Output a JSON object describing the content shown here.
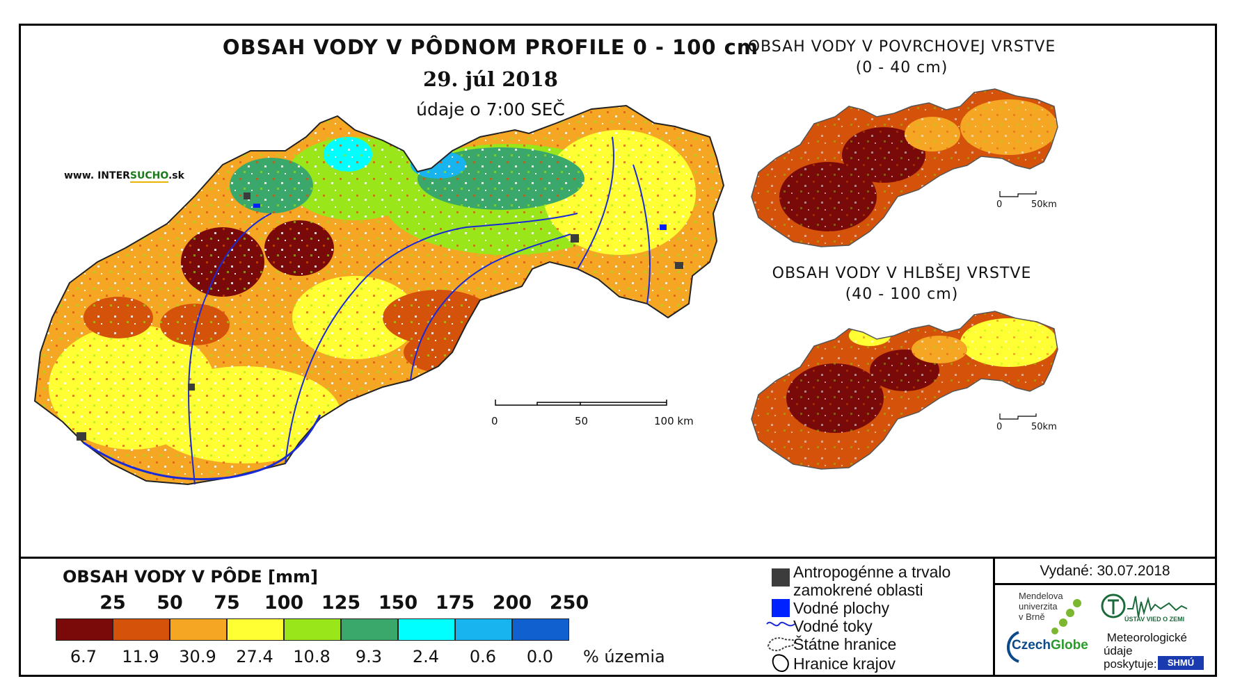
{
  "title": {
    "main": "OBSAH VODY V PÔDNOM PROFILE 0 - 100 cm",
    "date": "29. júl 2018",
    "time": "údaje o 7:00 SEČ"
  },
  "watermark": {
    "prefix": "www. INTER",
    "highlight": "SUCHO",
    "suffix": ".sk"
  },
  "insets": [
    {
      "title_line1": "OBSAH VODY V POVRCHOVEJ VRSTVE",
      "title_line2": "(0 - 40 cm)",
      "scale_0": "0",
      "scale_end": "50km"
    },
    {
      "title_line1": "OBSAH VODY V HLBŠEJ VRSTVE",
      "title_line2": "(40 - 100 cm)",
      "scale_0": "0",
      "scale_end": "50km"
    }
  ],
  "main_scale": {
    "label_0": "0",
    "label_mid": "50",
    "label_end": "100 km"
  },
  "legend": {
    "title": "OBSAH VODY V PÔDE [mm]",
    "unit": "% územia",
    "classes": [
      {
        "upper": "25",
        "color": "#7a0a0a",
        "pct": "6.7"
      },
      {
        "upper": "50",
        "color": "#d4520a",
        "pct": "11.9"
      },
      {
        "upper": "75",
        "color": "#f5a623",
        "pct": "30.9"
      },
      {
        "upper": "100",
        "color": "#ffff33",
        "pct": "27.4"
      },
      {
        "upper": "125",
        "color": "#99e61a",
        "pct": "10.8"
      },
      {
        "upper": "150",
        "color": "#3ba86b",
        "pct": "9.3"
      },
      {
        "upper": "175",
        "color": "#00ffff",
        "pct": "2.4"
      },
      {
        "upper": "200",
        "color": "#18b4f0",
        "pct": "0.6"
      },
      {
        "upper": "250",
        "color": "#1060d0",
        "pct": "0.0"
      }
    ]
  },
  "symbols": {
    "anthropogenic_1": "Antropogénne a trvalo",
    "anthropogenic_2": "zamokrené oblasti",
    "water_bodies": "Vodné plochy",
    "rivers": "Vodné toky",
    "state_border": "Štátne hranice",
    "region_border": "Hranice krajov"
  },
  "credits": {
    "issued": "Vydané: 30.07.2018",
    "mendel_1": "Mendelova",
    "mendel_2": "univerzita",
    "mendel_3": "v Brně",
    "czechglobe_a": "Czech",
    "czechglobe_b": "Globe",
    "ustav": "ÚSTAV VIED O ZEMI",
    "meteo_1": "Meteorologické",
    "meteo_2": "údaje",
    "meteo_3": "poskytuje:",
    "shmu": "SHMÚ"
  },
  "colors": {
    "dark_red": "#7a0a0a",
    "red_orange": "#d4520a",
    "orange": "#f5a623",
    "yellow": "#ffff33",
    "light_green": "#99e61a",
    "green": "#3ba86b",
    "cyan": "#00ffff",
    "light_blue": "#18b4f0",
    "blue": "#1060d0",
    "river": "#1a2bd6",
    "urban": "#3c3c3c"
  }
}
